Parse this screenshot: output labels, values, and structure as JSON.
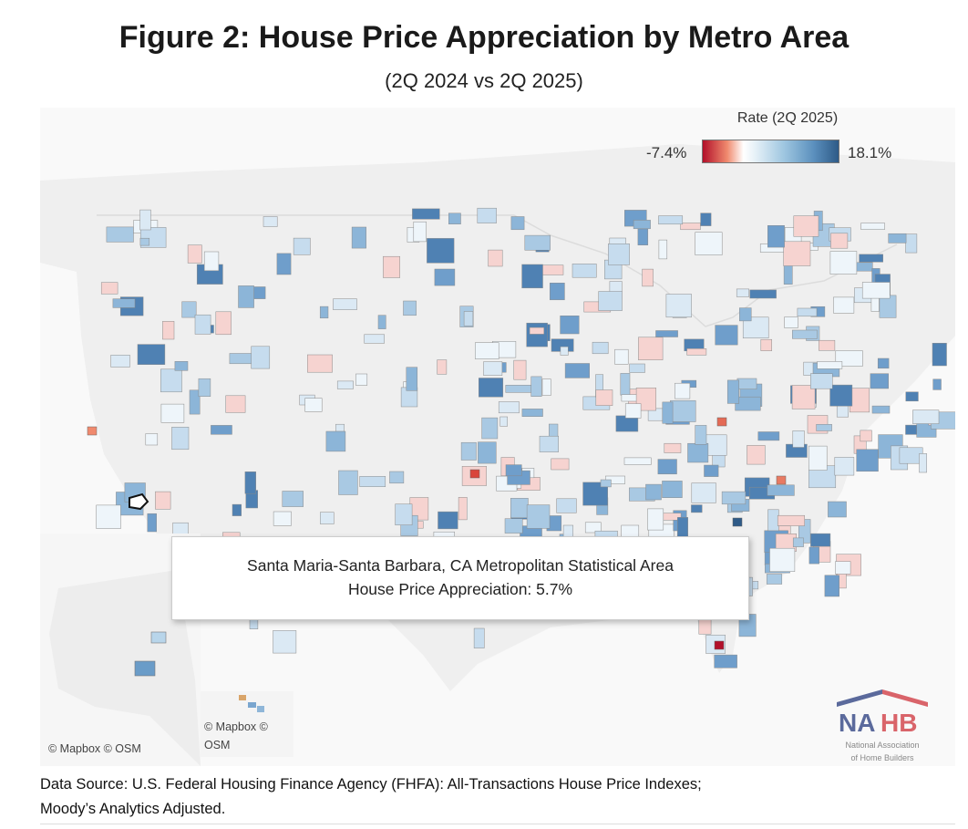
{
  "header": {
    "title": "Figure 2: House Price Appreciation by Metro Area",
    "subtitle": "(2Q 2024 vs 2Q 2025)"
  },
  "legend": {
    "title": "Rate (2Q 2025)",
    "min_label": "-7.4%",
    "max_label": "18.1%",
    "min_value": -7.4,
    "max_value": 18.1,
    "colors": {
      "low": "#b2102a",
      "mid": "#ffffff",
      "high": "#2e5a87"
    }
  },
  "tooltip": {
    "area": "Santa Maria-Santa Barbara, CA Metropolitan Statistical Area",
    "value_line": "House Price Appreciation: 5.7%",
    "value": 5.7
  },
  "map": {
    "attribution_main": "© Mapbox  © OSM",
    "attribution_hi_1": "© Mapbox  ©",
    "attribution_hi_2": "OSM",
    "land_color": "#eeeeee",
    "water_color": "#f9f9f9"
  },
  "logo": {
    "wordmark": "NAHB",
    "line1": "National Association",
    "line2": "of Home Builders"
  },
  "footer": {
    "source_line1": "Data Source: U.S. Federal Housing Finance Agency (FHFA): All-Transactions House Price Indexes;",
    "source_line2": "Moody’s Analytics Adjusted."
  }
}
